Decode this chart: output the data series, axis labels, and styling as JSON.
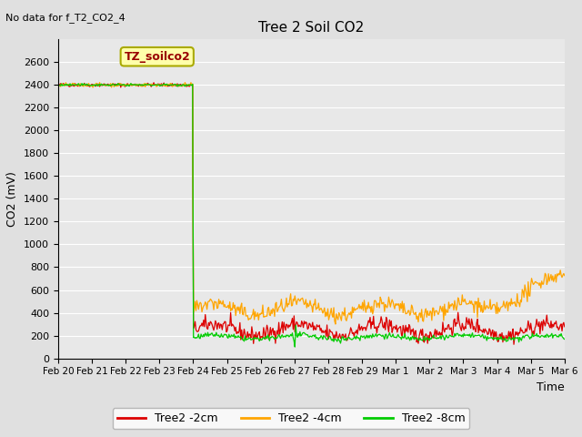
{
  "title": "Tree 2 Soil CO2",
  "no_data_label": "No data for f_T2_CO2_4",
  "ylabel": "CO2 (mV)",
  "xlabel": "Time",
  "annotation_label": "TZ_soilco2",
  "ylim": [
    0,
    2800
  ],
  "yticks": [
    0,
    200,
    400,
    600,
    800,
    1000,
    1200,
    1400,
    1600,
    1800,
    2000,
    2200,
    2400,
    2600
  ],
  "xtick_labels": [
    "Feb 20",
    "Feb 21",
    "Feb 22",
    "Feb 23",
    "Feb 24",
    "Feb 25",
    "Feb 26",
    "Feb 27",
    "Feb 28",
    "Feb 29",
    "Mar 1",
    "Mar 2",
    "Mar 3",
    "Mar 4",
    "Mar 5",
    "Mar 6"
  ],
  "fig_bg": "#e0e0e0",
  "plot_bg": "#e8e8e8",
  "legend_entries": [
    "Tree2 -2cm",
    "Tree2 -4cm",
    "Tree2 -8cm"
  ],
  "line_colors": [
    "#dd0000",
    "#ffa500",
    "#00cc00"
  ],
  "n_points": 600,
  "annotation_facecolor": "#ffffaa",
  "annotation_edgecolor": "#aaaa00",
  "annotation_textcolor": "#990000",
  "grid_color": "#ffffff",
  "title_fontsize": 11,
  "tick_fontsize": 8,
  "ylabel_fontsize": 9,
  "xlabel_fontsize": 9
}
